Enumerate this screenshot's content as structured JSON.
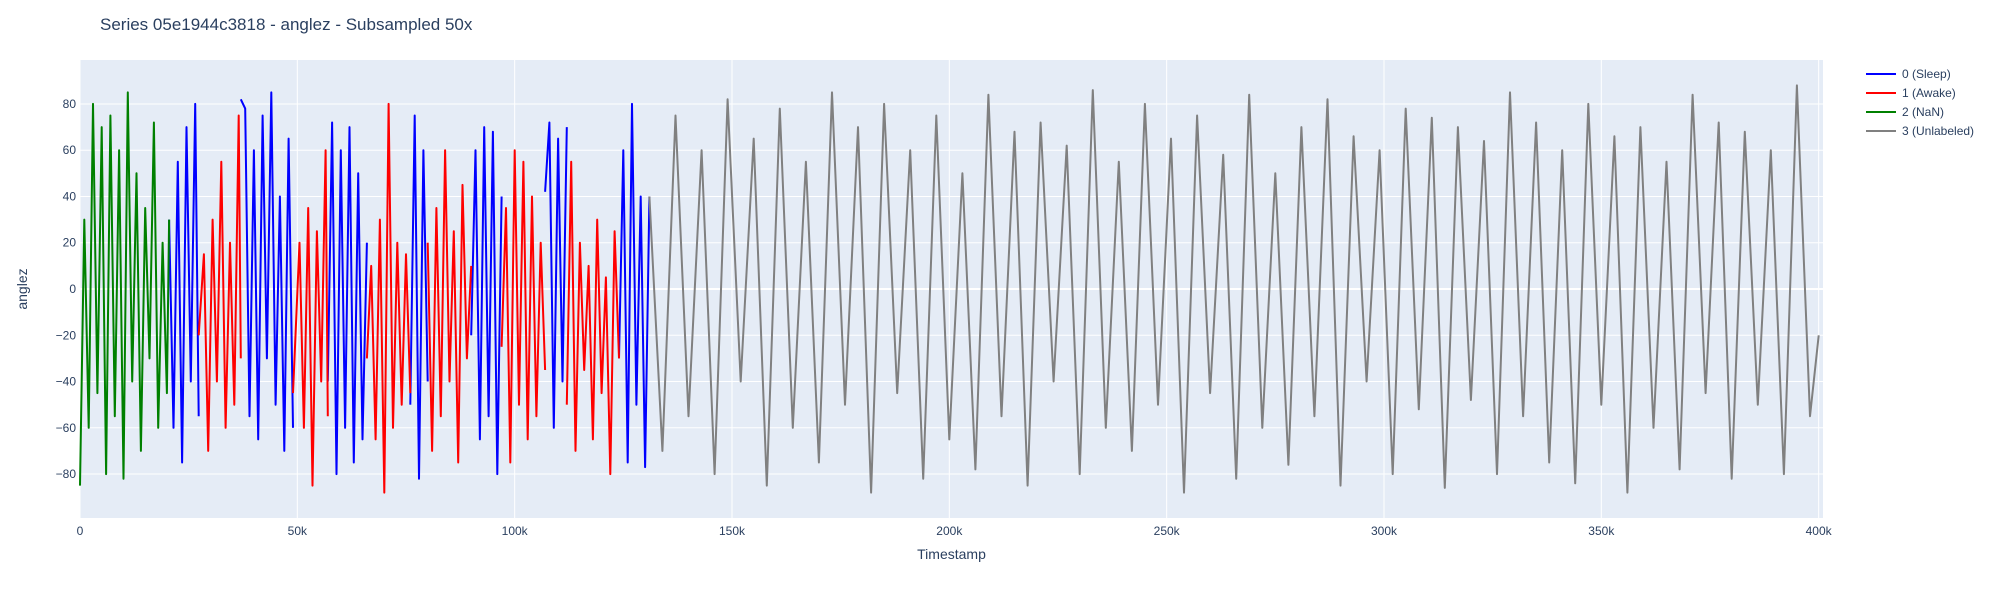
{
  "chart_data": {
    "type": "line",
    "title": "Series 05e1944c3818 - anglez - Subsampled 50x",
    "xlabel": "Timestamp",
    "ylabel": "anglez",
    "xlim": [
      0,
      401000
    ],
    "ylim": [
      -99,
      99
    ],
    "x_ticks": [
      0,
      50000,
      100000,
      150000,
      200000,
      250000,
      300000,
      350000,
      400000
    ],
    "x_tick_labels": [
      "0",
      "50k",
      "100k",
      "150k",
      "200k",
      "250k",
      "300k",
      "350k",
      "400k"
    ],
    "y_ticks": [
      -80,
      -60,
      -40,
      -20,
      0,
      20,
      40,
      60,
      80
    ],
    "y_tick_labels": [
      "−80",
      "−60",
      "−40",
      "−20",
      "0",
      "20",
      "40",
      "60",
      "80"
    ],
    "grid": true,
    "legend_position": "top-right",
    "series": [
      {
        "name": "0 (Sleep)",
        "color": "#0000ff",
        "segments": [
          {
            "x": [
              20500,
              21500,
              22500,
              23500,
              24500,
              25500,
              26500,
              27300
            ],
            "y": [
              30,
              -60,
              55,
              -75,
              70,
              -40,
              80,
              -55
            ]
          },
          {
            "x": [
              37000,
              38000,
              39000,
              40000,
              41000,
              42000,
              43000,
              44000,
              45000,
              46000,
              47000,
              48000,
              49000
            ],
            "y": [
              82,
              78,
              -55,
              60,
              -65,
              75,
              -30,
              85,
              -50,
              40,
              -70,
              65,
              -60
            ]
          },
          {
            "x": [
              57000,
              58000,
              59000,
              60000,
              61000,
              62000,
              63000,
              64000,
              65000,
              66000
            ],
            "y": [
              -40,
              72,
              -80,
              60,
              -60,
              70,
              -75,
              50,
              -65,
              20
            ]
          },
          {
            "x": [
              76000,
              77000,
              78000,
              79000,
              80000
            ],
            "y": [
              -50,
              75,
              -82,
              60,
              -40
            ]
          },
          {
            "x": [
              90000,
              91000,
              92000,
              93000,
              94000,
              95000,
              96000,
              97000
            ],
            "y": [
              -20,
              60,
              -65,
              70,
              -55,
              68,
              -80,
              40
            ]
          },
          {
            "x": [
              107000,
              108000,
              109000,
              110000,
              111000,
              112000
            ],
            "y": [
              42,
              72,
              -60,
              65,
              -40,
              70
            ]
          },
          {
            "x": [
              124000,
              125000,
              126000,
              127000,
              128000,
              129000,
              130000,
              131000
            ],
            "y": [
              -30,
              60,
              -75,
              80,
              -50,
              40,
              -77,
              40
            ]
          }
        ]
      },
      {
        "name": "1 (Awake)",
        "color": "#ff0000",
        "segments": [
          {
            "x": [
              27300,
              28500,
              29500,
              30500,
              31500,
              32500,
              33500,
              34500,
              35500,
              36500,
              37000
            ],
            "y": [
              -20,
              15,
              -70,
              30,
              -40,
              55,
              -60,
              20,
              -50,
              75,
              -30
            ]
          },
          {
            "x": [
              49000,
              50500,
              51500,
              52500,
              53500,
              54500,
              55500,
              56500,
              57000
            ],
            "y": [
              -45,
              20,
              -60,
              35,
              -85,
              25,
              -40,
              60,
              -55
            ]
          },
          {
            "x": [
              66000,
              67000,
              68000,
              69000,
              70000,
              71000,
              72000,
              73000,
              74000,
              75000,
              76000
            ],
            "y": [
              -30,
              10,
              -65,
              30,
              -88,
              80,
              -60,
              20,
              -50,
              15,
              -45
            ]
          },
          {
            "x": [
              80000,
              81000,
              82000,
              83000,
              84000,
              85000,
              86000,
              87000,
              88000,
              89000,
              90000
            ],
            "y": [
              20,
              -70,
              35,
              -55,
              60,
              -40,
              25,
              -75,
              45,
              -30,
              10
            ]
          },
          {
            "x": [
              97000,
              98000,
              99000,
              100000,
              101000,
              102000,
              103000,
              104000,
              105000,
              106000,
              107000
            ],
            "y": [
              -25,
              35,
              -75,
              60,
              -50,
              55,
              -65,
              40,
              -55,
              20,
              -35
            ]
          },
          {
            "x": [
              112000,
              113000,
              114000,
              115000,
              116000,
              117000,
              118000,
              119000,
              120000,
              121000,
              122000,
              123000,
              124000
            ],
            "y": [
              -50,
              55,
              -70,
              20,
              -35,
              10,
              -65,
              30,
              -45,
              5,
              -80,
              25,
              -30
            ]
          }
        ]
      },
      {
        "name": "2 (NaN)",
        "color": "#008000",
        "segments": [
          {
            "x": [
              0,
              1000,
              2000,
              3000,
              4000,
              5000,
              6000,
              7000,
              8000,
              9000,
              10000,
              11000,
              12000,
              13000,
              14000,
              15000,
              16000,
              17000,
              18000,
              19000,
              20000,
              20500
            ],
            "y": [
              -85,
              30,
              -60,
              80,
              -45,
              70,
              -80,
              75,
              -55,
              60,
              -82,
              85,
              -40,
              50,
              -70,
              35,
              -30,
              72,
              -60,
              20,
              -45,
              30
            ]
          }
        ]
      },
      {
        "name": "3 (Unlabeled)",
        "color": "#808080",
        "segments": [
          {
            "x": [
              131000,
              134000,
              137000,
              140000,
              143000,
              146000,
              149000,
              152000,
              155000,
              158000,
              161000,
              164000,
              167000,
              170000,
              173000,
              176000,
              179000,
              182000,
              185000,
              188000,
              191000,
              194000,
              197000,
              200000,
              203000,
              206000,
              209000,
              212000,
              215000,
              218000,
              221000,
              224000,
              227000,
              230000,
              233000,
              236000,
              239000,
              242000,
              245000,
              248000,
              251000,
              254000,
              257000,
              260000,
              263000,
              266000,
              269000,
              272000,
              275000,
              278000,
              281000,
              284000,
              287000,
              290000,
              293000,
              296000,
              299000,
              302000,
              305000,
              308000,
              311000,
              314000,
              317000,
              320000,
              323000,
              326000,
              329000,
              332000,
              335000,
              338000,
              341000,
              344000,
              347000,
              350000,
              353000,
              356000,
              359000,
              362000,
              365000,
              368000,
              371000,
              374000,
              377000,
              380000,
              383000,
              386000,
              389000,
              392000,
              395000,
              398000,
              400000
            ],
            "y": [
              40,
              -70,
              75,
              -55,
              60,
              -80,
              82,
              -40,
              65,
              -85,
              78,
              -60,
              55,
              -75,
              85,
              -50,
              70,
              -88,
              80,
              -45,
              60,
              -82,
              75,
              -65,
              50,
              -78,
              84,
              -55,
              68,
              -85,
              72,
              -40,
              62,
              -80,
              86,
              -60,
              55,
              -70,
              80,
              -50,
              65,
              -88,
              75,
              -45,
              58,
              -82,
              84,
              -60,
              50,
              -76,
              70,
              -55,
              82,
              -85,
              66,
              -40,
              60,
              -80,
              78,
              -52,
              74,
              -86,
              70,
              -48,
              64,
              -80,
              85,
              -55,
              72,
              -75,
              60,
              -84,
              80,
              -50,
              66,
              -88,
              70,
              -60,
              55,
              -78,
              84,
              -45,
              72,
              -82,
              68,
              -50,
              60,
              -80,
              88,
              -55,
              -20
            ]
          }
        ]
      }
    ]
  }
}
